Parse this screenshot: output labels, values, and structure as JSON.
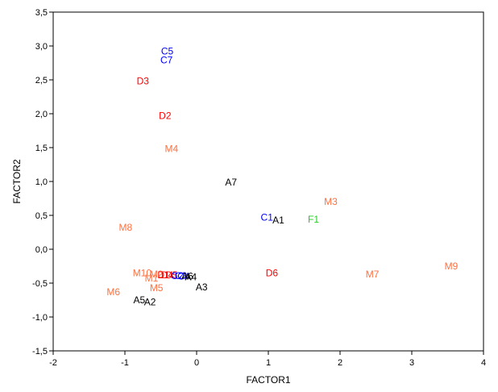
{
  "chart_data": {
    "type": "scatter",
    "xlabel": "FACTOR1",
    "ylabel": "FACTOR2",
    "xlim": [
      -2,
      4
    ],
    "ylim": [
      -1.5,
      3.5
    ],
    "grid": false,
    "x_ticks": [
      -2,
      -1,
      0,
      1,
      2,
      3,
      4
    ],
    "y_ticks": [
      -1.5,
      -1.0,
      -0.5,
      0.0,
      0.5,
      1.0,
      1.5,
      2.0,
      2.5,
      3.0,
      3.5
    ],
    "x_tick_labels": [
      "-2",
      "-1",
      "0",
      "1",
      "2",
      "3",
      "4"
    ],
    "y_tick_labels": [
      "-1,5",
      "-1,0",
      "-0,5",
      "0,0",
      "0,5",
      "1,0",
      "1,5",
      "2,0",
      "2,5",
      "3,0",
      "3,5"
    ],
    "colors": {
      "A": "#000000",
      "C": "#0000ff",
      "D": "#ff0000",
      "M": "#ff7040",
      "F": "#22cc22"
    },
    "points": [
      {
        "label": "C5",
        "x": -0.41,
        "y": 2.92,
        "group": "C"
      },
      {
        "label": "C7",
        "x": -0.42,
        "y": 2.79,
        "group": "C"
      },
      {
        "label": "D3",
        "x": -0.75,
        "y": 2.48,
        "group": "D"
      },
      {
        "label": "D2",
        "x": -0.44,
        "y": 1.97,
        "group": "D"
      },
      {
        "label": "M4",
        "x": -0.35,
        "y": 1.48,
        "group": "M"
      },
      {
        "label": "A7",
        "x": 0.48,
        "y": 0.99,
        "group": "A"
      },
      {
        "label": "M3",
        "x": 1.87,
        "y": 0.7,
        "group": "M"
      },
      {
        "label": "C1",
        "x": 0.98,
        "y": 0.47,
        "group": "C"
      },
      {
        "label": "A1",
        "x": 1.14,
        "y": 0.43,
        "group": "A"
      },
      {
        "label": "F1",
        "x": 1.63,
        "y": 0.44,
        "group": "F"
      },
      {
        "label": "M8",
        "x": -0.99,
        "y": 0.32,
        "group": "M"
      },
      {
        "label": "D6",
        "x": 1.05,
        "y": -0.35,
        "group": "D"
      },
      {
        "label": "M7",
        "x": 2.45,
        "y": -0.37,
        "group": "M"
      },
      {
        "label": "M9",
        "x": 3.55,
        "y": -0.25,
        "group": "M"
      },
      {
        "label": "M10",
        "x": -0.76,
        "y": -0.35,
        "group": "M"
      },
      {
        "label": "M1",
        "x": -0.63,
        "y": -0.43,
        "group": "M"
      },
      {
        "label": "M2",
        "x": -0.56,
        "y": -0.37,
        "group": "M"
      },
      {
        "label": "D1",
        "x": -0.46,
        "y": -0.38,
        "group": "D"
      },
      {
        "label": "D4",
        "x": -0.41,
        "y": -0.38,
        "group": "D"
      },
      {
        "label": "D5",
        "x": -0.35,
        "y": -0.38,
        "group": "D"
      },
      {
        "label": "C2",
        "x": -0.27,
        "y": -0.39,
        "group": "C"
      },
      {
        "label": "C3",
        "x": -0.22,
        "y": -0.39,
        "group": "C"
      },
      {
        "label": "C4",
        "x": -0.18,
        "y": -0.4,
        "group": "C"
      },
      {
        "label": "A4",
        "x": -0.08,
        "y": -0.41,
        "group": "A"
      },
      {
        "label": "A6",
        "x": -0.13,
        "y": -0.4,
        "group": "A"
      },
      {
        "label": "A3",
        "x": 0.07,
        "y": -0.56,
        "group": "A"
      },
      {
        "label": "M5",
        "x": -0.56,
        "y": -0.57,
        "group": "M"
      },
      {
        "label": "M6",
        "x": -1.16,
        "y": -0.63,
        "group": "M"
      },
      {
        "label": "A5",
        "x": -0.8,
        "y": -0.75,
        "group": "A"
      },
      {
        "label": "A2",
        "x": -0.65,
        "y": -0.78,
        "group": "A"
      }
    ]
  }
}
